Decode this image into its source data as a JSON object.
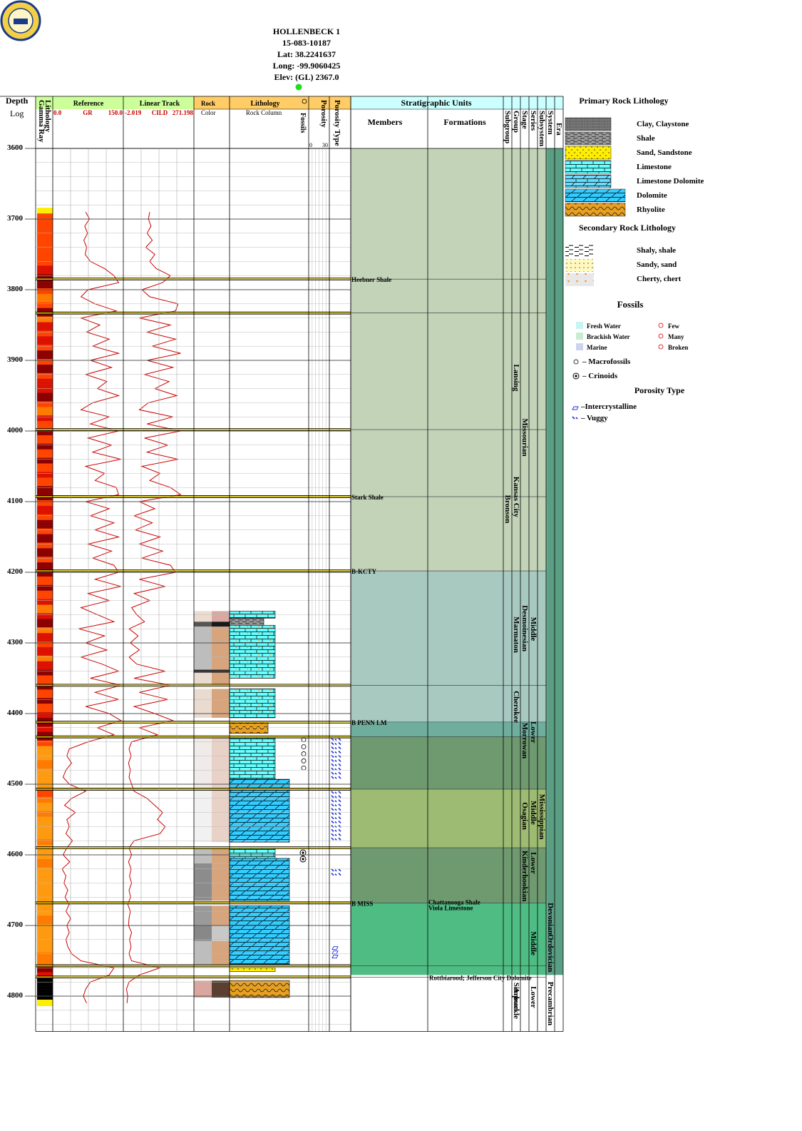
{
  "well": {
    "name": "HOLLENBECK 1",
    "api": "15-083-10187",
    "lat": "Lat: 38.2241637",
    "long": "Long: -99.9060425",
    "elev": "Elev: (GL) 2367.0"
  },
  "headers": {
    "depth_top": "Depth",
    "depth_bottom": "Log",
    "gamma": "Gamma Ray",
    "lithology": "Lithology",
    "reference": "Reference",
    "gr_min": "0.0",
    "gr_name": "GR",
    "gr_max": "150.0",
    "linear": "Linear Track",
    "cild_min": "-2.019",
    "cild_name": "CILD",
    "cild_max": "271.198",
    "rock_color_1": "Rock",
    "rock_color_2": "Color",
    "lith_col_1": "Lithology",
    "lith_col_2": "Rock Column",
    "fossils": "Fossils",
    "porosity": "Porosity",
    "porosity_min": "0",
    "porosity_max": "30",
    "porosity_type": "Porosity Type",
    "strat": "Stratigraphic Units",
    "members": "Members",
    "formations": "Formations",
    "subgroup": "Subgroup",
    "group": "Group",
    "stage": "Stage",
    "series": "Series",
    "subsystem": "Subsystem",
    "system": "System",
    "era": "Era"
  },
  "chart_data": {
    "type": "well-log",
    "depth_range": [
      3600,
      4850
    ],
    "depth_ticks": [
      3600,
      3700,
      3800,
      3900,
      4000,
      4100,
      4200,
      4300,
      4400,
      4500,
      4600,
      4700,
      4800
    ],
    "tops": [
      {
        "depth": 3785,
        "label": "Heebner Shale"
      },
      {
        "depth": 3833,
        "label": ""
      },
      {
        "depth": 3998,
        "label": ""
      },
      {
        "depth": 4093,
        "label": "Stark Shale"
      },
      {
        "depth": 4198,
        "label": "B-KCTY"
      },
      {
        "depth": 4360,
        "label": ""
      },
      {
        "depth": 4412,
        "label": "B PENN LM"
      },
      {
        "depth": 4433,
        "label": ""
      },
      {
        "depth": 4507,
        "label": ""
      },
      {
        "depth": 4590,
        "label": ""
      },
      {
        "depth": 4668,
        "label": "B MISS"
      },
      {
        "depth": 4757,
        "label": ""
      },
      {
        "depth": 4773,
        "label": "Rottbiarood; Jefferson City Dolomite"
      }
    ],
    "formations_text": [
      {
        "depth": 4668,
        "label": "Chattanooga Shale"
      },
      {
        "depth": 4672,
        "label": "Viola Limestone"
      }
    ],
    "intervals": [
      {
        "top": 3600,
        "base": 4198,
        "color": "#c2d3b8"
      },
      {
        "top": 4198,
        "base": 4412,
        "color": "#a8c9c0"
      },
      {
        "top": 4412,
        "base": 4433,
        "color": "#6fae9c"
      },
      {
        "top": 4433,
        "base": 4507,
        "color": "#6f9a70"
      },
      {
        "top": 4507,
        "base": 4590,
        "color": "#9dbb72"
      },
      {
        "top": 4590,
        "base": 4668,
        "color": "#6f9a70"
      },
      {
        "top": 4668,
        "base": 4770,
        "color": "#4fbc84"
      }
    ],
    "vertical_units": [
      {
        "col": "group",
        "text": "Lansing",
        "center": 3925
      },
      {
        "col": "group",
        "text": "Kansas City",
        "center": 4095
      },
      {
        "col": "subgroup",
        "text": "Bronson",
        "center": 4110
      },
      {
        "col": "stage",
        "text": "Missourian",
        "center": 4010
      },
      {
        "col": "group",
        "text": "Marmaton",
        "center": 4285
      },
      {
        "col": "stage",
        "text": "Desmoinesian",
        "center": 4280
      },
      {
        "col": "series",
        "text": "Middle",
        "center": 4280
      },
      {
        "col": "group",
        "text": "Cherokee",
        "center": 4390
      },
      {
        "col": "series",
        "text": "Lower",
        "center": 4425
      },
      {
        "col": "stage",
        "text": "Morrowan",
        "center": 4435
      },
      {
        "col": "series",
        "text": "Middle",
        "center": 4540
      },
      {
        "col": "stage",
        "text": "Osagian",
        "center": 4545
      },
      {
        "col": "subsystem",
        "text": "Mississippian",
        "center": 4550
      },
      {
        "col": "series",
        "text": "Lower",
        "center": 4610
      },
      {
        "col": "stage",
        "text": "Kinderhookian",
        "center": 4630
      },
      {
        "col": "series",
        "text": "Middle",
        "center": 4725
      },
      {
        "col": "system",
        "text": "Devonian",
        "center": 4690
      },
      {
        "col": "system",
        "text": "Ordovician",
        "center": 4740
      },
      {
        "col": "group",
        "text": "Simpson",
        "center": 4800
      },
      {
        "col": "group",
        "text": "Arbuckle",
        "center": 4810
      },
      {
        "col": "series",
        "text": "Lower",
        "center": 4800
      },
      {
        "col": "system",
        "text": "Precambrian",
        "center": 4810
      }
    ],
    "lith_rows": [
      {
        "top": 4255,
        "base": 4265,
        "type": "limestone"
      },
      {
        "top": 4265,
        "base": 4275,
        "type": "shale"
      },
      {
        "top": 4275,
        "base": 4350,
        "type": "limestone_chert"
      },
      {
        "top": 4365,
        "base": 4406,
        "type": "limestone_chert"
      },
      {
        "top": 4412,
        "base": 4428,
        "type": "rhyolite_sand"
      },
      {
        "top": 4433,
        "base": 4493,
        "type": "limestone"
      },
      {
        "top": 4493,
        "base": 4505,
        "type": "dolomite"
      },
      {
        "top": 4507,
        "base": 4582,
        "type": "dolomite"
      },
      {
        "top": 4590,
        "base": 4605,
        "type": "limestone"
      },
      {
        "top": 4605,
        "base": 4665,
        "type": "dolomite"
      },
      {
        "top": 4672,
        "base": 4755,
        "type": "dolomite"
      },
      {
        "top": 4760,
        "base": 4765,
        "type": "sand"
      },
      {
        "top": 4778,
        "base": 4802,
        "type": "rhyolite"
      }
    ],
    "rock_colors": [
      {
        "top": 4255,
        "base": 4270,
        "c1": "#ecdcd0",
        "c2": "#d9a8a0"
      },
      {
        "top": 4270,
        "base": 4277,
        "c1": "#555555",
        "c2": "#1a1a1a"
      },
      {
        "top": 4277,
        "base": 4338,
        "c1": "#bdbdbd",
        "c2": "#d6a57e"
      },
      {
        "top": 4338,
        "base": 4342,
        "c1": "#111111",
        "c2": "#111111"
      },
      {
        "top": 4342,
        "base": 4360,
        "c1": "#eadbd0",
        "c2": "#d6a57e"
      },
      {
        "top": 4365,
        "base": 4406,
        "c1": "#eadbd0",
        "c2": "#d6a57e"
      },
      {
        "top": 4433,
        "base": 4505,
        "c1": "#f0ebe8",
        "c2": "#e8d2c8"
      },
      {
        "top": 4507,
        "base": 4582,
        "c1": "#f1f1f1",
        "c2": "#e8d2c8"
      },
      {
        "top": 4590,
        "base": 4612,
        "c1": "#bdbdbd",
        "c2": "#d6a57e"
      },
      {
        "top": 4612,
        "base": 4665,
        "c1": "#8c8c8c",
        "c2": "#d6a57e"
      },
      {
        "top": 4672,
        "base": 4700,
        "c1": "#9a9a9a",
        "c2": "#d6a57e"
      },
      {
        "top": 4700,
        "base": 4722,
        "c1": "#888888",
        "c2": "#c8c8c8"
      },
      {
        "top": 4722,
        "base": 4755,
        "c1": "#bdbdbd",
        "c2": "#d6a57e"
      },
      {
        "top": 4778,
        "base": 4802,
        "c1": "#d9a7a0",
        "c2": "#5a4030"
      }
    ],
    "fossils": [
      {
        "depth": 4437,
        "kind": "macro"
      },
      {
        "depth": 4447,
        "kind": "macro"
      },
      {
        "depth": 4457,
        "kind": "macro"
      },
      {
        "depth": 4467,
        "kind": "macro"
      },
      {
        "depth": 4477,
        "kind": "macro"
      },
      {
        "depth": 4597,
        "kind": "crinoid"
      },
      {
        "depth": 4606,
        "kind": "crinoid"
      }
    ],
    "porosity_symbols": [
      {
        "top": 4435,
        "base": 4490,
        "kind": "vuggy"
      },
      {
        "top": 4510,
        "base": 4578,
        "kind": "vuggy"
      },
      {
        "top": 4620,
        "base": 4628,
        "kind": "vuggy"
      },
      {
        "top": 4730,
        "base": 4745,
        "kind": "intercrystalline"
      }
    ],
    "gr_curve": [
      [
        3690,
        70
      ],
      [
        3700,
        78
      ],
      [
        3710,
        68
      ],
      [
        3720,
        74
      ],
      [
        3730,
        66
      ],
      [
        3740,
        72
      ],
      [
        3750,
        69
      ],
      [
        3760,
        80
      ],
      [
        3770,
        110
      ],
      [
        3780,
        130
      ],
      [
        3790,
        140
      ],
      [
        3800,
        75
      ],
      [
        3810,
        60
      ],
      [
        3820,
        90
      ],
      [
        3830,
        135
      ],
      [
        3840,
        60
      ],
      [
        3850,
        100
      ],
      [
        3860,
        72
      ],
      [
        3870,
        120
      ],
      [
        3880,
        85
      ],
      [
        3890,
        140
      ],
      [
        3900,
        80
      ],
      [
        3910,
        125
      ],
      [
        3920,
        70
      ],
      [
        3930,
        115
      ],
      [
        3940,
        95
      ],
      [
        3950,
        140
      ],
      [
        3960,
        85
      ],
      [
        3970,
        60
      ],
      [
        3980,
        120
      ],
      [
        3990,
        80
      ],
      [
        4000,
        140
      ],
      [
        4010,
        75
      ],
      [
        4020,
        125
      ],
      [
        4030,
        85
      ],
      [
        4040,
        145
      ],
      [
        4050,
        70
      ],
      [
        4060,
        110
      ],
      [
        4070,
        90
      ],
      [
        4080,
        135
      ],
      [
        4090,
        140
      ],
      [
        4100,
        70
      ],
      [
        4110,
        120
      ],
      [
        4120,
        80
      ],
      [
        4130,
        130
      ],
      [
        4140,
        90
      ],
      [
        4150,
        140
      ],
      [
        4160,
        75
      ],
      [
        4170,
        125
      ],
      [
        4180,
        85
      ],
      [
        4190,
        130
      ],
      [
        4200,
        140
      ],
      [
        4210,
        90
      ],
      [
        4220,
        145
      ],
      [
        4230,
        75
      ],
      [
        4240,
        120
      ],
      [
        4250,
        60
      ],
      [
        4260,
        95
      ],
      [
        4270,
        130
      ],
      [
        4280,
        55
      ],
      [
        4290,
        110
      ],
      [
        4300,
        70
      ],
      [
        4310,
        115
      ],
      [
        4320,
        60
      ],
      [
        4330,
        105
      ],
      [
        4340,
        140
      ],
      [
        4350,
        80
      ],
      [
        4360,
        145
      ],
      [
        4370,
        90
      ],
      [
        4380,
        140
      ],
      [
        4390,
        70
      ],
      [
        4400,
        120
      ],
      [
        4410,
        145
      ],
      [
        4420,
        95
      ],
      [
        4430,
        130
      ],
      [
        4440,
        75
      ],
      [
        4450,
        35
      ],
      [
        4460,
        30
      ],
      [
        4470,
        40
      ],
      [
        4480,
        28
      ],
      [
        4490,
        22
      ],
      [
        4500,
        35
      ],
      [
        4510,
        70
      ],
      [
        4520,
        40
      ],
      [
        4530,
        25
      ],
      [
        4540,
        48
      ],
      [
        4550,
        30
      ],
      [
        4560,
        35
      ],
      [
        4570,
        28
      ],
      [
        4580,
        42
      ],
      [
        4590,
        30
      ],
      [
        4600,
        22
      ],
      [
        4610,
        36
      ],
      [
        4620,
        20
      ],
      [
        4630,
        28
      ],
      [
        4640,
        24
      ],
      [
        4650,
        32
      ],
      [
        4660,
        26
      ],
      [
        4670,
        35
      ],
      [
        4680,
        28
      ],
      [
        4690,
        38
      ],
      [
        4700,
        30
      ],
      [
        4710,
        35
      ],
      [
        4720,
        28
      ],
      [
        4730,
        32
      ],
      [
        4740,
        40
      ],
      [
        4750,
        60
      ],
      [
        4760,
        130
      ],
      [
        4770,
        120
      ],
      [
        4780,
        80
      ],
      [
        4790,
        70
      ],
      [
        4800,
        65
      ],
      [
        4810,
        72
      ]
    ],
    "cild_curve": [
      [
        3690,
        100
      ],
      [
        3700,
        95
      ],
      [
        3710,
        105
      ],
      [
        3720,
        90
      ],
      [
        3730,
        110
      ],
      [
        3740,
        85
      ],
      [
        3750,
        120
      ],
      [
        3760,
        100
      ],
      [
        3770,
        125
      ],
      [
        3780,
        180
      ],
      [
        3790,
        150
      ],
      [
        3800,
        70
      ],
      [
        3810,
        100
      ],
      [
        3820,
        210
      ],
      [
        3830,
        200
      ],
      [
        3840,
        60
      ],
      [
        3850,
        180
      ],
      [
        3860,
        90
      ],
      [
        3870,
        200
      ],
      [
        3880,
        110
      ],
      [
        3890,
        220
      ],
      [
        3900,
        90
      ],
      [
        3910,
        190
      ],
      [
        3920,
        80
      ],
      [
        3930,
        175
      ],
      [
        3940,
        120
      ],
      [
        3950,
        205
      ],
      [
        3960,
        95
      ],
      [
        3970,
        60
      ],
      [
        3980,
        190
      ],
      [
        3990,
        90
      ],
      [
        4000,
        220
      ],
      [
        4010,
        80
      ],
      [
        4020,
        170
      ],
      [
        4030,
        90
      ],
      [
        4040,
        210
      ],
      [
        4050,
        70
      ],
      [
        4060,
        140
      ],
      [
        4070,
        100
      ],
      [
        4080,
        180
      ],
      [
        4090,
        220
      ],
      [
        4100,
        60
      ],
      [
        4110,
        120
      ],
      [
        4120,
        40
      ],
      [
        4130,
        110
      ],
      [
        4140,
        45
      ],
      [
        4150,
        140
      ],
      [
        4160,
        60
      ],
      [
        4170,
        150
      ],
      [
        4180,
        70
      ],
      [
        4190,
        180
      ],
      [
        4200,
        200
      ],
      [
        4210,
        60
      ],
      [
        4220,
        160
      ],
      [
        4230,
        40
      ],
      [
        4240,
        100
      ],
      [
        4250,
        30
      ],
      [
        4260,
        50
      ],
      [
        4270,
        80
      ],
      [
        4280,
        20
      ],
      [
        4290,
        55
      ],
      [
        4300,
        25
      ],
      [
        4310,
        60
      ],
      [
        4320,
        20
      ],
      [
        4330,
        50
      ],
      [
        4340,
        160
      ],
      [
        4350,
        40
      ],
      [
        4360,
        180
      ],
      [
        4370,
        60
      ],
      [
        4380,
        170
      ],
      [
        4390,
        40
      ],
      [
        4400,
        120
      ],
      [
        4410,
        190
      ],
      [
        4420,
        60
      ],
      [
        4430,
        130
      ],
      [
        4440,
        30
      ],
      [
        4450,
        20
      ],
      [
        4460,
        28
      ],
      [
        4470,
        18
      ],
      [
        4480,
        25
      ],
      [
        4490,
        20
      ],
      [
        4500,
        30
      ],
      [
        4510,
        40
      ],
      [
        4520,
        90
      ],
      [
        4530,
        120
      ],
      [
        4540,
        150
      ],
      [
        4550,
        130
      ],
      [
        4560,
        160
      ],
      [
        4570,
        140
      ],
      [
        4580,
        40
      ],
      [
        4590,
        20
      ],
      [
        4600,
        30
      ],
      [
        4610,
        18
      ],
      [
        4620,
        28
      ],
      [
        4630,
        22
      ],
      [
        4640,
        30
      ],
      [
        4650,
        20
      ],
      [
        4660,
        26
      ],
      [
        4670,
        15
      ],
      [
        4680,
        25
      ],
      [
        4690,
        20
      ],
      [
        4700,
        18
      ],
      [
        4710,
        30
      ],
      [
        4720,
        22
      ],
      [
        4730,
        28
      ],
      [
        4740,
        20
      ],
      [
        4750,
        30
      ],
      [
        4760,
        140
      ],
      [
        4770,
        60
      ],
      [
        4780,
        20
      ],
      [
        4790,
        10
      ],
      [
        4800,
        15
      ],
      [
        4810,
        12
      ]
    ]
  },
  "legend": {
    "primary_title": "Primary Rock Lithology",
    "primary": [
      {
        "label": "Clay, Claystone",
        "type": "clay"
      },
      {
        "label": "Shale",
        "type": "shale"
      },
      {
        "label": "Sand, Sandstone",
        "type": "sand"
      },
      {
        "label": "Limestone",
        "type": "limestone"
      },
      {
        "label": "Limestone Dolomite",
        "type": "limedol"
      },
      {
        "label": "Dolomite",
        "type": "dolomite"
      },
      {
        "label": "Rhyolite",
        "type": "rhyolite"
      }
    ],
    "secondary_title": "Secondary Rock Lithology",
    "secondary": [
      {
        "label": "Shaly, shale",
        "type": "shaly"
      },
      {
        "label": "Sandy, sand",
        "type": "sandy"
      },
      {
        "label": "Cherty, chert",
        "type": "cherty"
      }
    ],
    "fossils_title": "Fossils",
    "fossil_env": [
      {
        "label": "Fresh Water",
        "color": "#c8f4f4"
      },
      {
        "label": "Brackish Water",
        "color": "#c8ecd0"
      },
      {
        "label": "Marine",
        "color": "#cdd3ee"
      }
    ],
    "fossil_abund": [
      "Few",
      "Many",
      "Broken"
    ],
    "macro_label": "Macrofossils",
    "crinoid_label": "Crinoids",
    "porosity_title": "Porosity Type",
    "poro_inter_label": "Intercrystalline",
    "poro_vug_label": "Vuggy"
  },
  "colors": {
    "header_green": "#ccff99",
    "header_orange": "#ffcc66",
    "header_cyan": "#ccffff",
    "curve": "#cc0000",
    "top_line": "#c8b400",
    "limestone": "#66ffff",
    "dolomite": "#33ccff",
    "sand": "#ffee00",
    "rhyolite": "#e8a020"
  }
}
